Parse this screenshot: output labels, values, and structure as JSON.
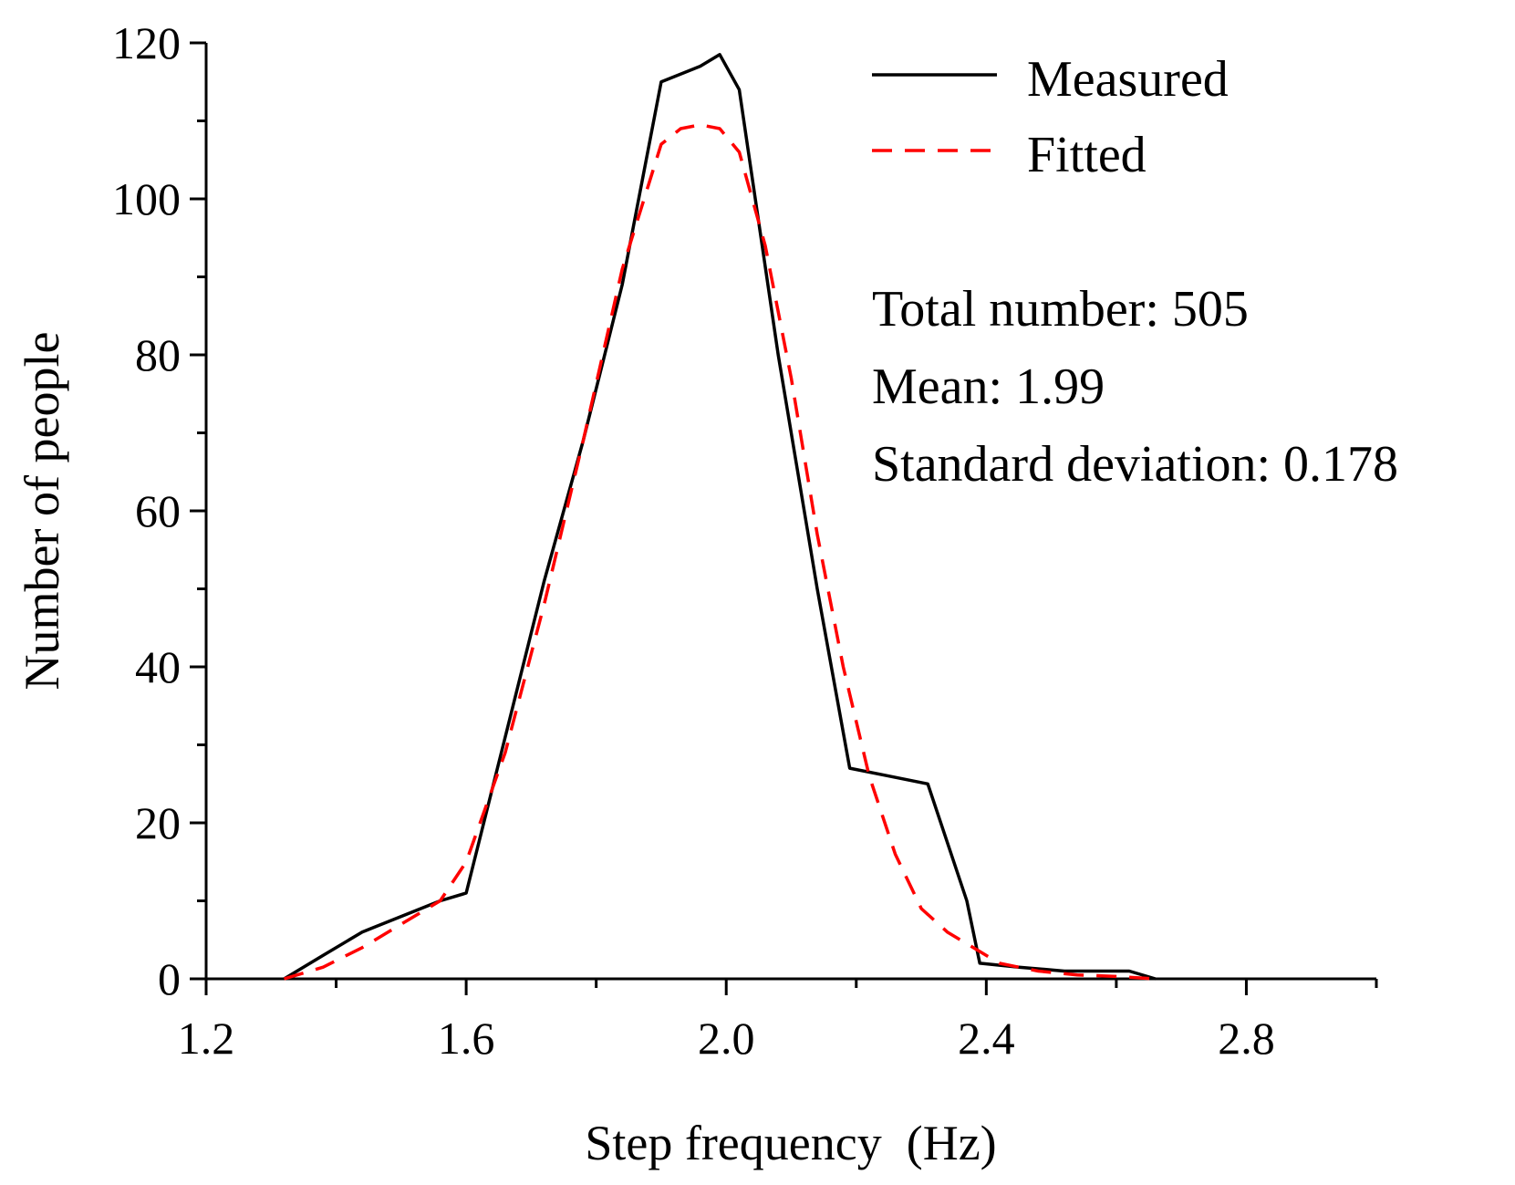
{
  "chart_data": {
    "type": "line",
    "title": "",
    "xlabel": "Step frequency  (Hz)",
    "ylabel": "Number of people",
    "xlim": [
      1.2,
      3.0
    ],
    "ylim": [
      0,
      120
    ],
    "x_ticks": [
      1.2,
      1.6,
      2.0,
      2.4,
      2.8
    ],
    "x_tick_labels": [
      "1.2",
      "1.6",
      "2.0",
      "2.4",
      "2.8"
    ],
    "x_minor_ticks": [
      1.4,
      1.8,
      2.2,
      2.6,
      3.0
    ],
    "y_ticks": [
      0,
      20,
      40,
      60,
      80,
      100,
      120
    ],
    "y_tick_labels": [
      "0",
      "20",
      "40",
      "60",
      "80",
      "100",
      "120"
    ],
    "y_minor_ticks": [
      10,
      30,
      50,
      70,
      90,
      110
    ],
    "grid": false,
    "legend_position": "top-right",
    "series": [
      {
        "name": "Measured",
        "color": "#000000",
        "style": "solid",
        "x": [
          1.32,
          1.38,
          1.44,
          1.5,
          1.56,
          1.6,
          1.66,
          1.72,
          1.78,
          1.84,
          1.9,
          1.96,
          1.99,
          2.02,
          2.08,
          2.14,
          2.19,
          2.25,
          2.31,
          2.37,
          2.39,
          2.45,
          2.52,
          2.58,
          2.62,
          2.66
        ],
        "y": [
          0,
          3,
          6,
          8,
          10,
          11,
          31,
          51,
          69,
          89,
          115,
          117,
          118.5,
          114,
          80,
          50,
          27,
          26,
          25,
          10,
          2,
          1.5,
          1,
          1,
          1,
          0
        ]
      },
      {
        "name": "Fitted",
        "color": "#ff0000",
        "style": "dashed",
        "x": [
          1.32,
          1.38,
          1.44,
          1.5,
          1.56,
          1.6,
          1.66,
          1.72,
          1.78,
          1.84,
          1.9,
          1.93,
          1.96,
          1.99,
          2.02,
          2.06,
          2.1,
          2.14,
          2.18,
          2.22,
          2.26,
          2.3,
          2.34,
          2.38,
          2.42,
          2.48,
          2.54,
          2.6,
          2.66
        ],
        "y": [
          0,
          1.5,
          4,
          7,
          10,
          15,
          29,
          48,
          69,
          91,
          107,
          109,
          109.5,
          109,
          106,
          94,
          77,
          57,
          40,
          26,
          16,
          9,
          6,
          4,
          2,
          1,
          0.5,
          0.3,
          0
        ]
      }
    ],
    "annotations": [
      "Total number: 505",
      "Mean: 1.99",
      "Standard deviation: 0.178"
    ]
  }
}
